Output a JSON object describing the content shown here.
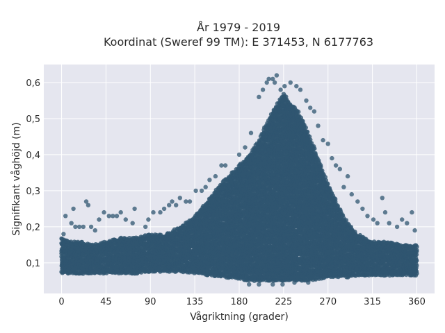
{
  "chart_data": {
    "type": "scatter",
    "title_line1": "År 1979 - 2019",
    "title_line2": "Koordinat (Sweref 99 TM): E 371453, N 6177763",
    "xlabel": "Vågriktning (grader)",
    "ylabel": "Signifikant våghöjd (m)",
    "xlim": [
      -18,
      378
    ],
    "ylim": [
      0.015,
      0.65
    ],
    "grid": true,
    "x_ticks": [
      0,
      45,
      90,
      135,
      180,
      225,
      270,
      315,
      360
    ],
    "x_tick_labels": [
      "0",
      "45",
      "90",
      "135",
      "180",
      "225",
      "270",
      "315",
      "360"
    ],
    "y_ticks": [
      0.1,
      0.2,
      0.3,
      0.4,
      0.5,
      0.6
    ],
    "y_tick_labels": [
      "0,1",
      "0,2",
      "0,3",
      "0,4",
      "0,5",
      "0,6"
    ],
    "colors": {
      "background": "#e5e6ef",
      "grid": "#ffffff",
      "marker": "#2f5570"
    },
    "point_density_profile": {
      "direction": [
        0,
        10,
        20,
        30,
        45,
        60,
        75,
        90,
        105,
        120,
        135,
        150,
        165,
        180,
        190,
        200,
        210,
        220,
        225,
        230,
        240,
        250,
        260,
        270,
        280,
        290,
        300,
        315,
        330,
        345,
        360
      ],
      "lower_bound": [
        0.07,
        0.07,
        0.07,
        0.07,
        0.07,
        0.07,
        0.07,
        0.075,
        0.075,
        0.075,
        0.07,
        0.065,
        0.06,
        0.055,
        0.05,
        0.05,
        0.05,
        0.05,
        0.05,
        0.05,
        0.05,
        0.05,
        0.055,
        0.06,
        0.06,
        0.06,
        0.065,
        0.065,
        0.065,
        0.065,
        0.065
      ],
      "upper_bound": [
        0.17,
        0.16,
        0.16,
        0.15,
        0.16,
        0.17,
        0.17,
        0.18,
        0.18,
        0.2,
        0.23,
        0.28,
        0.33,
        0.37,
        0.4,
        0.44,
        0.5,
        0.55,
        0.57,
        0.55,
        0.52,
        0.46,
        0.39,
        0.32,
        0.26,
        0.21,
        0.18,
        0.16,
        0.16,
        0.15,
        0.15
      ],
      "outliers": [
        [
          2,
          0.18
        ],
        [
          4,
          0.23
        ],
        [
          10,
          0.21
        ],
        [
          12,
          0.25
        ],
        [
          14,
          0.2
        ],
        [
          18,
          0.2
        ],
        [
          22,
          0.2
        ],
        [
          25,
          0.27
        ],
        [
          27,
          0.26
        ],
        [
          30,
          0.2
        ],
        [
          34,
          0.19
        ],
        [
          38,
          0.22
        ],
        [
          43,
          0.24
        ],
        [
          48,
          0.23
        ],
        [
          52,
          0.23
        ],
        [
          56,
          0.23
        ],
        [
          60,
          0.24
        ],
        [
          65,
          0.22
        ],
        [
          72,
          0.21
        ],
        [
          74,
          0.25
        ],
        [
          85,
          0.2
        ],
        [
          88,
          0.22
        ],
        [
          93,
          0.24
        ],
        [
          100,
          0.24
        ],
        [
          104,
          0.25
        ],
        [
          109,
          0.26
        ],
        [
          112,
          0.27
        ],
        [
          116,
          0.26
        ],
        [
          120,
          0.28
        ],
        [
          126,
          0.27
        ],
        [
          130,
          0.27
        ],
        [
          136,
          0.3
        ],
        [
          142,
          0.3
        ],
        [
          146,
          0.31
        ],
        [
          150,
          0.33
        ],
        [
          156,
          0.34
        ],
        [
          162,
          0.37
        ],
        [
          166,
          0.37
        ],
        [
          180,
          0.4
        ],
        [
          186,
          0.42
        ],
        [
          192,
          0.46
        ],
        [
          200,
          0.56
        ],
        [
          204,
          0.58
        ],
        [
          208,
          0.6
        ],
        [
          210,
          0.61
        ],
        [
          214,
          0.61
        ],
        [
          216,
          0.6
        ],
        [
          218,
          0.62
        ],
        [
          222,
          0.58
        ],
        [
          226,
          0.59
        ],
        [
          232,
          0.6
        ],
        [
          238,
          0.59
        ],
        [
          242,
          0.58
        ],
        [
          248,
          0.55
        ],
        [
          252,
          0.53
        ],
        [
          256,
          0.52
        ],
        [
          260,
          0.48
        ],
        [
          265,
          0.44
        ],
        [
          270,
          0.43
        ],
        [
          274,
          0.39
        ],
        [
          278,
          0.37
        ],
        [
          282,
          0.36
        ],
        [
          286,
          0.31
        ],
        [
          290,
          0.34
        ],
        [
          294,
          0.29
        ],
        [
          300,
          0.27
        ],
        [
          305,
          0.25
        ],
        [
          310,
          0.23
        ],
        [
          316,
          0.22
        ],
        [
          320,
          0.21
        ],
        [
          325,
          0.28
        ],
        [
          328,
          0.24
        ],
        [
          332,
          0.21
        ],
        [
          340,
          0.2
        ],
        [
          345,
          0.22
        ],
        [
          350,
          0.21
        ],
        [
          355,
          0.24
        ],
        [
          358,
          0.19
        ],
        [
          190,
          0.04
        ],
        [
          200,
          0.04
        ],
        [
          214,
          0.04
        ],
        [
          224,
          0.04
        ],
        [
          236,
          0.045
        ],
        [
          250,
          0.045
        ]
      ]
    }
  }
}
